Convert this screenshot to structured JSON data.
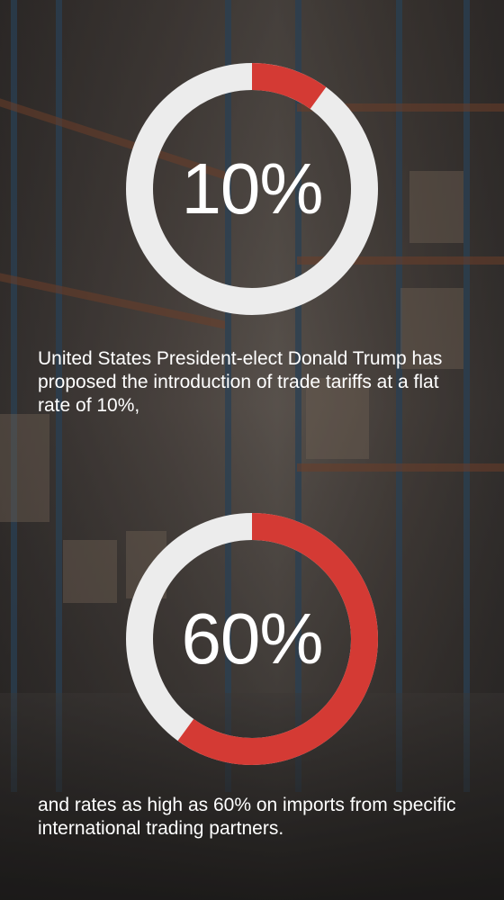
{
  "colors": {
    "accent": "#d43a34",
    "track": "#ececec",
    "text": "#ffffff"
  },
  "chart_data": [
    {
      "type": "pie",
      "variant": "donut",
      "value": 10,
      "max": 100,
      "center_label": "10%",
      "caption": "United States President-elect Donald Trump has proposed the introduction of trade tariffs at a flat rate of 10%,"
    },
    {
      "type": "pie",
      "variant": "donut",
      "value": 60,
      "max": 100,
      "center_label": "60%",
      "caption": "and rates as high as 60% on imports from specific international trading partners."
    }
  ]
}
